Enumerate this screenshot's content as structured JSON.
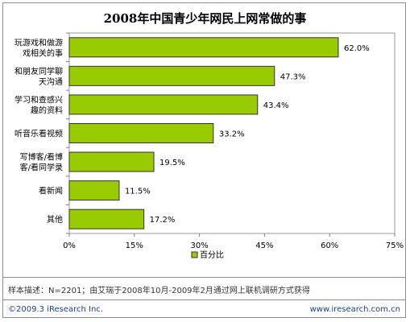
{
  "chart_data": {
    "type": "bar",
    "orientation": "horizontal",
    "title": "2008年中国青少年网民上网常做的事",
    "categories": [
      [
        "玩游戏和做游",
        "戏相关的事"
      ],
      [
        "和朋友同学聊",
        "天沟通"
      ],
      [
        "学习和查感兴",
        "趣的资料"
      ],
      [
        "听音乐看视频"
      ],
      [
        "写博客/看博",
        "客/看同学录"
      ],
      [
        "看新闻"
      ],
      [
        "其他"
      ]
    ],
    "series": [
      {
        "name": "百分比",
        "values": [
          62.0,
          47.3,
          43.4,
          33.2,
          19.5,
          11.5,
          17.2
        ]
      }
    ],
    "value_labels": [
      "62.0%",
      "47.3%",
      "43.4%",
      "33.2%",
      "19.5%",
      "11.5%",
      "17.2%"
    ],
    "x_ticks": [
      "0%",
      "15%",
      "30%",
      "45%",
      "60%",
      "75%"
    ],
    "xlim": [
      0,
      75
    ],
    "legend_position": "bottom",
    "bar_color": "#99cc00"
  },
  "footer": {
    "note": "样本描述：N=2201；由艾瑞于2008年10月-2009年2月通过网上联机调研方式获得",
    "copyright": "©2009.3 iResearch Inc.",
    "website": "www.iresearch.com.cn"
  }
}
